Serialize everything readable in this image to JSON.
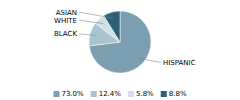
{
  "chart_data": {
    "type": "pie",
    "categories": [
      "HISPANIC",
      "BLACK",
      "WHITE",
      "ASIAN"
    ],
    "values": [
      73.0,
      12.4,
      5.8,
      8.8
    ],
    "value_labels": [
      "73.0%",
      "12.4%",
      "5.8%",
      "8.8%"
    ],
    "colors": [
      "#7b9eb0",
      "#a8c4d0",
      "#cfe0e8",
      "#2e5f78"
    ],
    "legend": "bottom"
  }
}
